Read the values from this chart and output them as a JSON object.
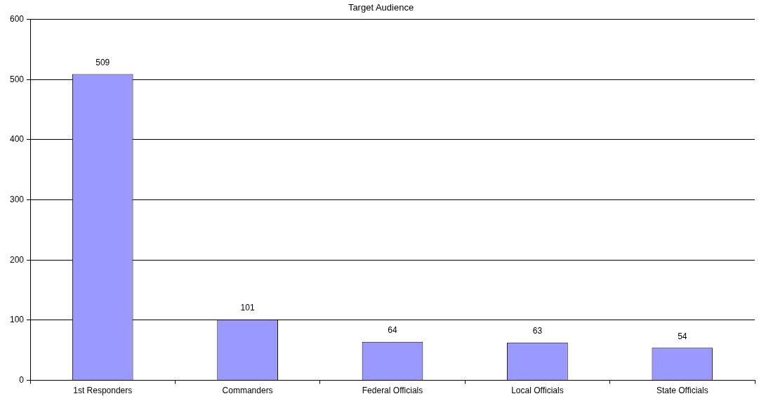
{
  "chart_data": {
    "type": "bar",
    "title": "Target Audience",
    "categories": [
      "1st Responders",
      "Commanders",
      "Federal Officials",
      "Local Officials",
      "State Officials"
    ],
    "values": [
      509,
      101,
      64,
      63,
      54
    ],
    "color": "#9999ff",
    "ylim": [
      0,
      600
    ],
    "yticks": [
      0,
      100,
      200,
      300,
      400,
      500,
      600
    ],
    "grid": "y",
    "legend": false,
    "data_labels": true
  }
}
